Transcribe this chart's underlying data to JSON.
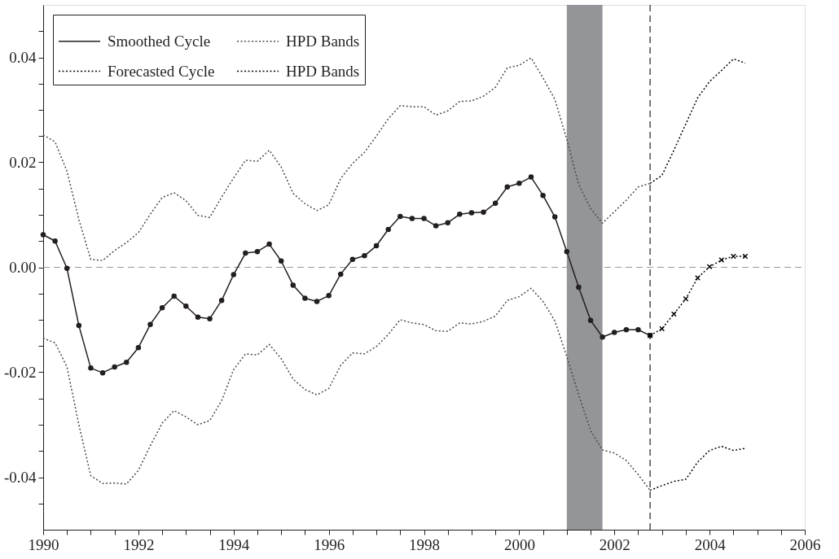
{
  "chart_data": {
    "type": "line",
    "x": [
      1990,
      1990.25,
      1990.5,
      1990.75,
      1991,
      1991.25,
      1991.5,
      1991.75,
      1992,
      1992.25,
      1992.5,
      1992.75,
      1993,
      1993.25,
      1993.5,
      1993.75,
      1994,
      1994.25,
      1994.5,
      1994.75,
      1995,
      1995.25,
      1995.5,
      1995.75,
      1996,
      1996.25,
      1996.5,
      1996.75,
      1997,
      1997.25,
      1997.5,
      1997.75,
      1998,
      1998.25,
      1998.5,
      1998.75,
      1999,
      1999.25,
      1999.5,
      1999.75,
      2000,
      2000.25,
      2000.5,
      2000.75,
      2001,
      2001.25,
      2001.5,
      2001.75,
      2002,
      2002.25,
      2002.5,
      2002.75
    ],
    "xlim": [
      1990,
      2006
    ],
    "xticks": [
      1990,
      {
        "value": 1990.5,
        "label": null
      },
      {
        "value": 1991,
        "label": null
      },
      {
        "value": 1991.5,
        "label": null
      },
      1992,
      {
        "value": 1992.5,
        "label": null
      },
      {
        "value": 1993,
        "label": null
      },
      {
        "value": 1993.5,
        "label": null
      },
      1994,
      {
        "value": 1994.5,
        "label": null
      },
      {
        "value": 1995,
        "label": null
      },
      {
        "value": 1995.5,
        "label": null
      },
      1996,
      {
        "value": 1996.5,
        "label": null
      },
      {
        "value": 1997,
        "label": null
      },
      {
        "value": 1997.5,
        "label": null
      },
      1998,
      {
        "value": 1998.5,
        "label": null
      },
      {
        "value": 1999,
        "label": null
      },
      {
        "value": 1999.5,
        "label": null
      },
      2000,
      {
        "value": 2000.5,
        "label": null
      },
      {
        "value": 2001,
        "label": null
      },
      {
        "value": 2001.5,
        "label": null
      },
      2002,
      {
        "value": 2002.5,
        "label": null
      },
      {
        "value": 2003,
        "label": null
      },
      {
        "value": 2003.5,
        "label": null
      },
      2004,
      {
        "value": 2004.5,
        "label": null
      },
      {
        "value": 2005,
        "label": null
      },
      {
        "value": 2005.5,
        "label": null
      },
      2006
    ],
    "ylim": [
      -0.05,
      0.05
    ],
    "yticks": [
      {
        "value": -0.045,
        "label": null
      },
      -0.04,
      {
        "value": -0.035,
        "label": null
      },
      {
        "value": -0.03,
        "label": null
      },
      {
        "value": -0.025,
        "label": null
      },
      -0.02,
      {
        "value": -0.015,
        "label": null
      },
      {
        "value": -0.01,
        "label": null
      },
      {
        "value": -0.005,
        "label": null
      },
      {
        "value": 0,
        "label": "0.00"
      },
      {
        "value": 0.005,
        "label": null
      },
      {
        "value": 0.01,
        "label": null
      },
      {
        "value": 0.015,
        "label": null
      },
      0.02,
      {
        "value": 0.025,
        "label": null
      },
      {
        "value": 0.03,
        "label": null
      },
      {
        "value": 0.035,
        "label": null
      },
      0.04,
      {
        "value": 0.045,
        "label": null
      }
    ],
    "legend": "top left",
    "series": [
      {
        "name": "Smoothed Cycle",
        "color": "#231f20",
        "marker": "circle",
        "line_style": "solid",
        "values": [
          0.0062,
          0.005,
          -0.0002,
          -0.0111,
          -0.0192,
          -0.0201,
          -0.019,
          -0.0181,
          -0.0153,
          -0.0109,
          -0.0077,
          -0.0055,
          -0.0074,
          -0.0095,
          -0.0098,
          -0.0063,
          -0.0014,
          0.0027,
          0.003,
          0.0044,
          0.0012,
          -0.0034,
          -0.0059,
          -0.0065,
          -0.0054,
          -0.0013,
          0.0015,
          0.0022,
          0.0041,
          0.0072,
          0.0097,
          0.0093,
          0.0093,
          0.0079,
          0.0085,
          0.0101,
          0.0104,
          0.0105,
          0.0122,
          0.0153,
          0.016,
          0.0172,
          0.0137,
          0.0096,
          0.003,
          -0.0038,
          -0.0101,
          -0.0133,
          -0.0124,
          -0.0119,
          -0.0119,
          -0.013
        ]
      },
      {
        "name": "HPD Bands",
        "color": "#4a4a4a",
        "marker": "none",
        "line_style": "dotted",
        "values": [
          0.0252,
          0.0239,
          0.0183,
          0.0091,
          0.0015,
          0.0013,
          0.0032,
          0.0047,
          0.0066,
          0.0101,
          0.0133,
          0.0142,
          0.0127,
          0.0099,
          0.0095,
          0.0134,
          0.017,
          0.0204,
          0.0202,
          0.0223,
          0.0191,
          0.0141,
          0.0121,
          0.0108,
          0.0119,
          0.0169,
          0.0198,
          0.0219,
          0.025,
          0.0283,
          0.0308,
          0.0306,
          0.0306,
          0.029,
          0.0298,
          0.0316,
          0.0317,
          0.0326,
          0.0343,
          0.038,
          0.0385,
          0.0399,
          0.0361,
          0.032,
          0.0244,
          0.0158,
          0.0112,
          0.0084,
          0.0106,
          0.0128,
          0.0153,
          0.016
        ]
      },
      {
        "color": "#4a4a4a",
        "marker": "none",
        "line_style": "dotted",
        "values": [
          -0.0135,
          -0.0144,
          -0.019,
          -0.03,
          -0.0397,
          -0.0412,
          -0.0411,
          -0.0413,
          -0.0387,
          -0.034,
          -0.0297,
          -0.0273,
          -0.0285,
          -0.03,
          -0.0292,
          -0.0254,
          -0.0195,
          -0.0165,
          -0.0167,
          -0.0147,
          -0.0174,
          -0.0213,
          -0.0233,
          -0.0243,
          -0.0231,
          -0.0187,
          -0.0163,
          -0.0165,
          -0.0151,
          -0.0128,
          -0.01,
          -0.0106,
          -0.0109,
          -0.0121,
          -0.0122,
          -0.0106,
          -0.0108,
          -0.0103,
          -0.0093,
          -0.0063,
          -0.0056,
          -0.004,
          -0.0065,
          -0.0102,
          -0.017,
          -0.0243,
          -0.0311,
          -0.0348,
          -0.0354,
          -0.0368,
          -0.0395,
          -0.0425
        ]
      },
      {
        "name": "Forecasted Cycle",
        "color": "#000000",
        "marker": "cross",
        "line_style": "dotted",
        "x": [
          2002.75,
          2003,
          2003.25,
          2003.5,
          2003.75,
          2004,
          2004.25,
          2004.5,
          2004.75
        ],
        "values": [
          -0.013,
          -0.0117,
          -0.0089,
          -0.006,
          -0.002,
          0.0001,
          0.0014,
          0.0021,
          0.0021
        ]
      },
      {
        "name": "HPD Bands",
        "color": "#000000",
        "marker": "none",
        "line_style": "dotted",
        "x": [
          2002.75,
          2003,
          2003.25,
          2003.5,
          2003.75,
          2004,
          2004.25,
          2004.5,
          2004.75
        ],
        "values": [
          0.016,
          0.0175,
          0.0223,
          0.0273,
          0.0323,
          0.0354,
          0.0375,
          0.0397,
          0.0389
        ]
      },
      {
        "color": "#000000",
        "marker": "none",
        "line_style": "dotted",
        "x": [
          2002.75,
          2003,
          2003.25,
          2003.5,
          2003.75,
          2004,
          2004.25,
          2004.5,
          2004.75
        ],
        "values": [
          -0.0425,
          -0.0416,
          -0.0408,
          -0.0404,
          -0.0371,
          -0.0349,
          -0.0341,
          -0.0349,
          -0.0345
        ]
      }
    ],
    "ref_lines": [
      {
        "axis": "y",
        "value": 0,
        "color": "#999999",
        "line_style": "dashed"
      },
      {
        "axis": "x",
        "value": 2002.75,
        "color": "#231f20",
        "line_style": "dashed"
      }
    ],
    "bands": [
      {
        "axis": "x",
        "from": 2001,
        "to": 2001.75,
        "color": "#939598"
      }
    ]
  }
}
